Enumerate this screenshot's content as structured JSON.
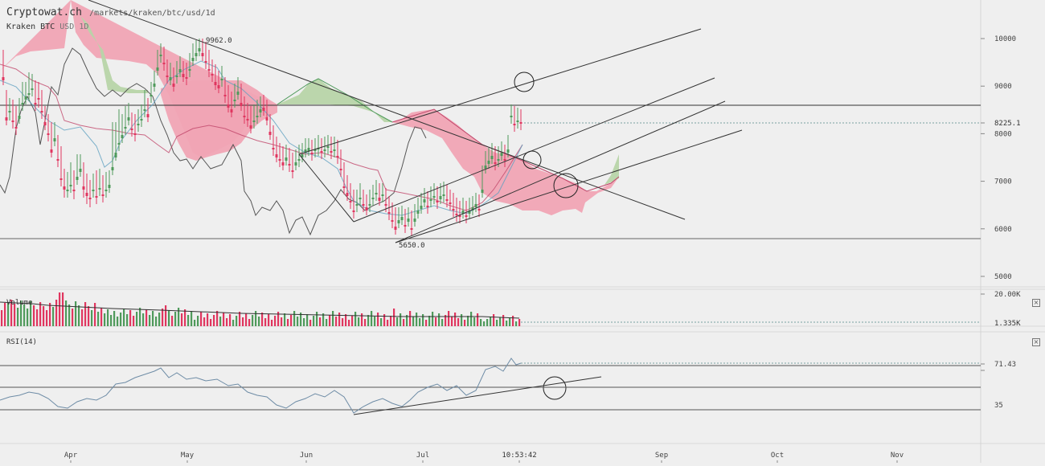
{
  "header": {
    "site": "Cryptowat.ch",
    "path": "/markets/kraken/btc/usd/1d",
    "exchange": "Kraken",
    "pair": "BTC",
    "quote": "USD",
    "interval": "1D"
  },
  "colors": {
    "up": "#4f9a5b",
    "down": "#e0365f",
    "cloud_bull": "#b7d4a8",
    "cloud_bear": "#f0a4b4",
    "tenkan": "#5fa0c0",
    "kijun": "#c0466a",
    "chikou": "#555555",
    "trend_lines": "#333333",
    "background": "#efefef"
  },
  "chart_data": [
    {
      "type": "candlestick",
      "title": "",
      "series_note": "Kraken BTC/USD daily candles with Ichimoku cloud",
      "ylim": [
        4800,
        10600
      ],
      "y_ticks": [
        5000,
        6000,
        7000,
        8000,
        9000,
        10000
      ],
      "x_ticks": [
        "Apr",
        "May",
        "Jun",
        "Jul",
        "Sep",
        "Oct",
        "Nov"
      ],
      "current_price": "8225.1",
      "annotations": {
        "high": "9962.0",
        "low": "5650.0"
      },
      "close_approx": [
        {
          "date": "Mar 15",
          "close": 8200
        },
        {
          "date": "Apr 1",
          "close": 6900
        },
        {
          "date": "Apr 10",
          "close": 6800
        },
        {
          "date": "Apr 20",
          "close": 8300
        },
        {
          "date": "May 1",
          "close": 9200
        },
        {
          "date": "May 5",
          "close": 9700
        },
        {
          "date": "May 10",
          "close": 9300
        },
        {
          "date": "May 20",
          "close": 8300
        },
        {
          "date": "Jun 1",
          "close": 7500
        },
        {
          "date": "Jun 10",
          "close": 7600
        },
        {
          "date": "Jun 15",
          "close": 6400
        },
        {
          "date": "Jun 24",
          "close": 6000
        },
        {
          "date": "Jun 28",
          "close": 5900
        },
        {
          "date": "Jul 5",
          "close": 6600
        },
        {
          "date": "Jul 10",
          "close": 6300
        },
        {
          "date": "Jul 15",
          "close": 6400
        },
        {
          "date": "Jul 20",
          "close": 7400
        },
        {
          "date": "Jul 25",
          "close": 8200
        },
        {
          "date": "Jul 27",
          "close": 8225
        }
      ]
    },
    {
      "type": "bar",
      "title": "Volume",
      "y_ticks_labels": [
        "20.00K",
        "1.335K"
      ]
    },
    {
      "type": "line",
      "title": "RSI(14)",
      "y_ticks_labels": [
        "71.43",
        "35"
      ],
      "timestamp": "10:53:42"
    }
  ]
}
